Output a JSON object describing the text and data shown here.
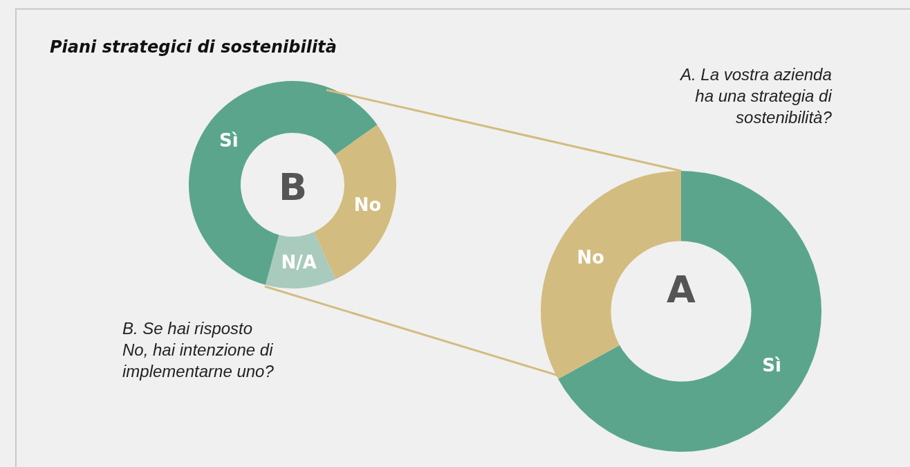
{
  "chart_data": [
    {
      "type": "donut",
      "title": "Piani strategici di sostenibilità",
      "categories": [
        "No",
        "N/A",
        "Sì"
      ],
      "values": [
        28,
        11,
        61
      ],
      "colors": [
        "#d3bc80",
        "#a8cbbd",
        "#5ba58d"
      ],
      "annotations": [
        "B",
        "B. Se hai risposto\nNo, hai intenzione di\nimplementarne uno?"
      ],
      "legend": false
    },
    {
      "type": "donut",
      "categories": [
        "Sì",
        "No"
      ],
      "values": [
        67,
        33
      ],
      "colors": [
        "#5ba58d",
        "#d3bc80"
      ],
      "annotations": [
        "A",
        "A. La vostra azienda\nha una strategia di\nsostenibilità?"
      ],
      "legend": false
    }
  ]
}
